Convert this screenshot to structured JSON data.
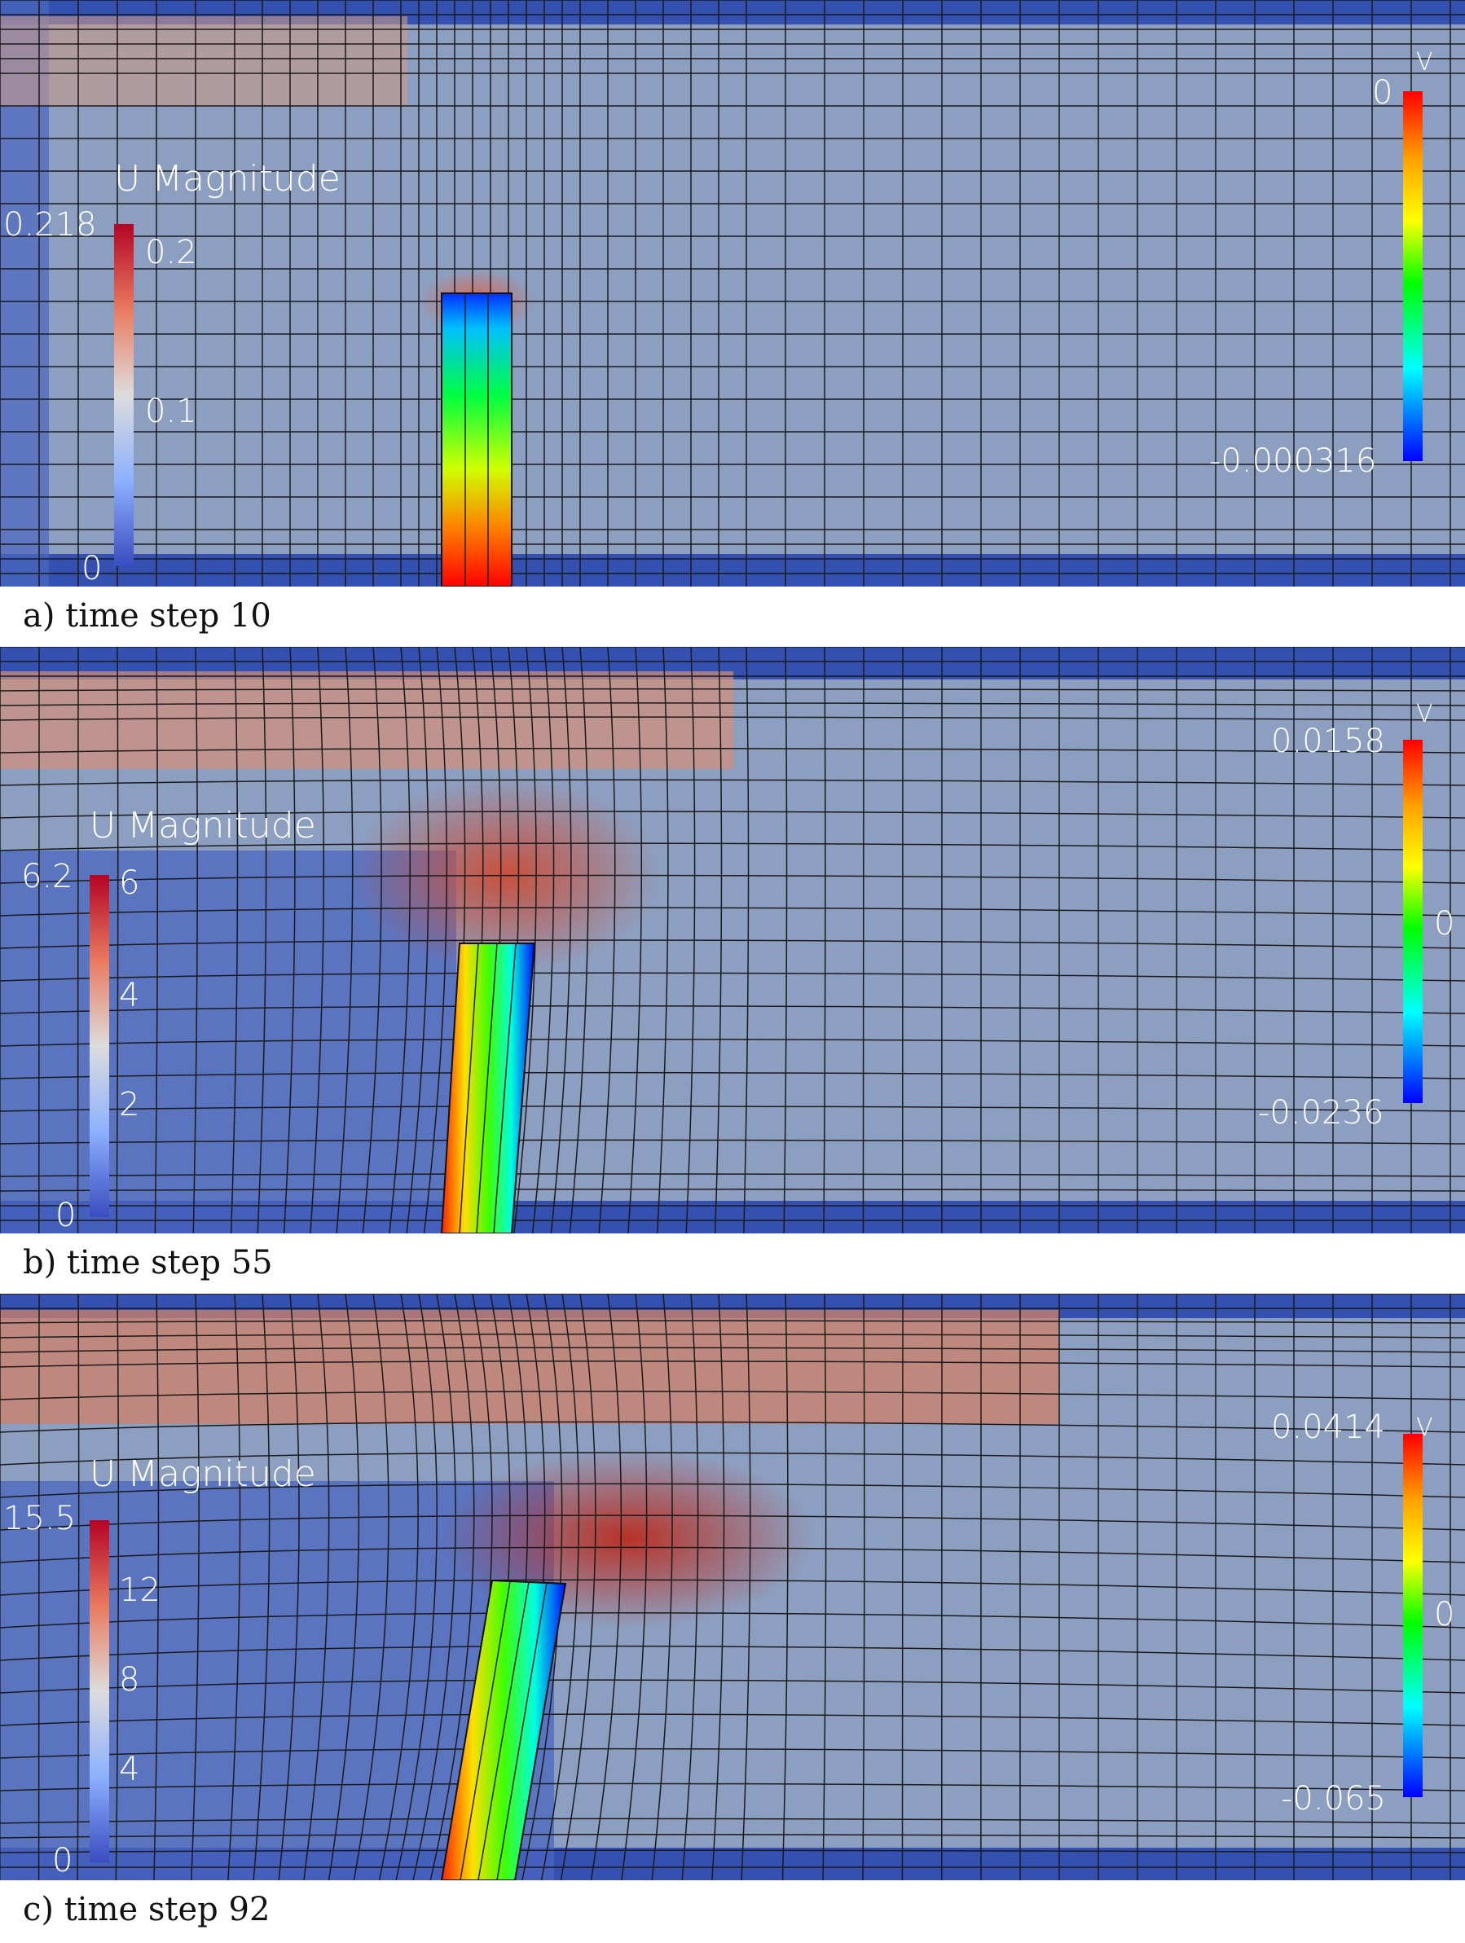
{
  "figure": {
    "panels": [
      {
        "caption": "a) time step 10",
        "u_legend": {
          "title": "U Magnitude",
          "max_label": "0.218",
          "ticks": [
            "0.2",
            "0.1",
            "0"
          ]
        },
        "v_legend": {
          "title": "V",
          "max_label": "0",
          "min_label": "-0.000316",
          "mid_label": ""
        },
        "flap_colors": [
          "#0000ff",
          "#00ff40",
          "#ffff00",
          "#ff0000"
        ]
      },
      {
        "caption": "b) time step 55",
        "u_legend": {
          "title": "U Magnitude",
          "max_label": "6.2",
          "ticks": [
            "6",
            "4",
            "2",
            "0"
          ]
        },
        "v_legend": {
          "title": "V",
          "max_label": "0.0158",
          "min_label": "-0.0236",
          "mid_label": "0"
        },
        "flap_colors": [
          "#ff2000",
          "#ffff00",
          "#00ff00",
          "#00ffff",
          "#0000ff"
        ]
      },
      {
        "caption": "c) time step 92",
        "u_legend": {
          "title": "U Magnitude",
          "max_label": "15.5",
          "ticks": [
            "12",
            "8",
            "4",
            "0"
          ]
        },
        "v_legend": {
          "title": "V",
          "max_label": "0.0414",
          "min_label": "-0.065",
          "mid_label": "0"
        },
        "flap_colors": [
          "#ff2000",
          "#ffff00",
          "#00ff00",
          "#00ffff",
          "#0000ff"
        ]
      }
    ]
  }
}
